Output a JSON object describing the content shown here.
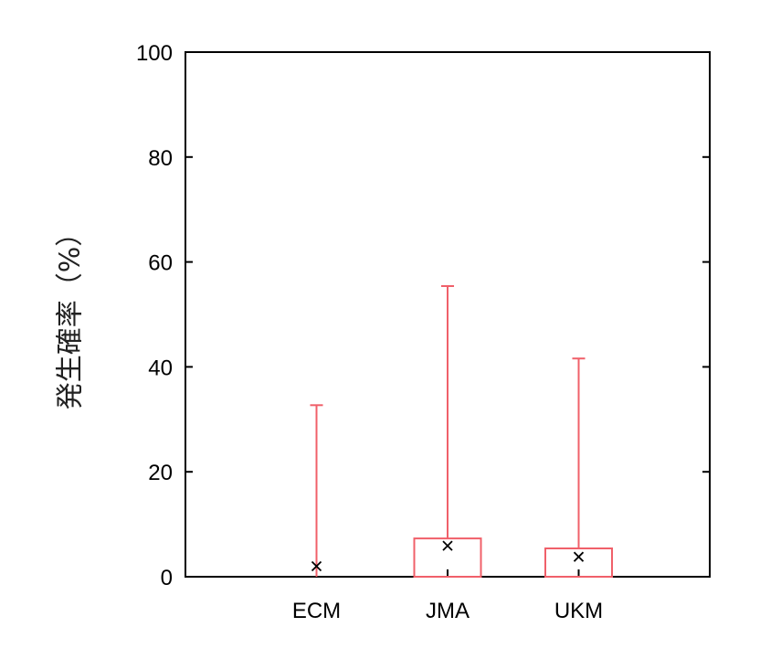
{
  "chart_data": {
    "type": "box",
    "title": "",
    "xlabel": "",
    "ylabel": "発生確率（%）",
    "ylim": [
      0,
      100
    ],
    "yticks": [
      0,
      20,
      40,
      60,
      80,
      100
    ],
    "categories": [
      "ECM",
      "JMA",
      "UKM"
    ],
    "series": [
      {
        "category": "ECM",
        "box_low": 0,
        "box_high": 0,
        "whisker_high": 32.7,
        "mean": 2.0
      },
      {
        "category": "JMA",
        "box_low": 0,
        "box_high": 7.3,
        "whisker_high": 55.4,
        "mean": 5.9
      },
      {
        "category": "UKM",
        "box_low": 0,
        "box_high": 5.4,
        "whisker_high": 41.6,
        "mean": 3.8
      }
    ],
    "grid": false,
    "colors": {
      "box": "#f0606a",
      "mean_marker": "#000000",
      "axis": "#000000"
    }
  }
}
